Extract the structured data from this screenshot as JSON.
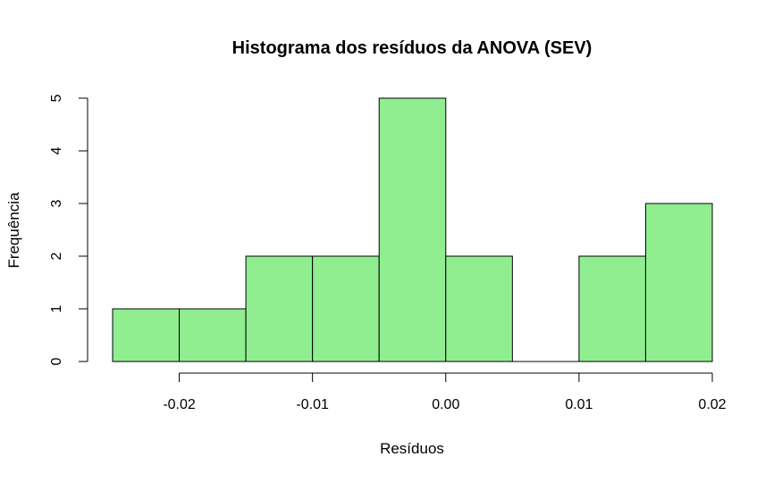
{
  "chart_data": {
    "type": "histogram",
    "title": "Histograma dos resíduos da ANOVA (SEV)",
    "xlabel": "Resíduos",
    "ylabel": "Frequência",
    "bar_color": "#90ee90",
    "bins": [
      {
        "start": -0.025,
        "end": -0.02,
        "count": 1
      },
      {
        "start": -0.02,
        "end": -0.015,
        "count": 1
      },
      {
        "start": -0.015,
        "end": -0.01,
        "count": 2
      },
      {
        "start": -0.01,
        "end": -0.005,
        "count": 2
      },
      {
        "start": -0.005,
        "end": 0.0,
        "count": 5
      },
      {
        "start": 0.0,
        "end": 0.005,
        "count": 2
      },
      {
        "start": 0.005,
        "end": 0.01,
        "count": 0
      },
      {
        "start": 0.01,
        "end": 0.015,
        "count": 2
      },
      {
        "start": 0.015,
        "end": 0.02,
        "count": 3
      }
    ],
    "x_ticks": [
      -0.02,
      -0.01,
      0.0,
      0.01,
      0.02
    ],
    "x_tick_labels": [
      "-0.02",
      "-0.01",
      "0.00",
      "0.01",
      "0.02"
    ],
    "y_ticks": [
      0,
      1,
      2,
      3,
      4,
      5
    ],
    "y_tick_labels": [
      "0",
      "1",
      "2",
      "3",
      "4",
      "5"
    ],
    "xlim": [
      -0.025,
      0.02
    ],
    "ylim": [
      0,
      5
    ],
    "grid": false
  }
}
